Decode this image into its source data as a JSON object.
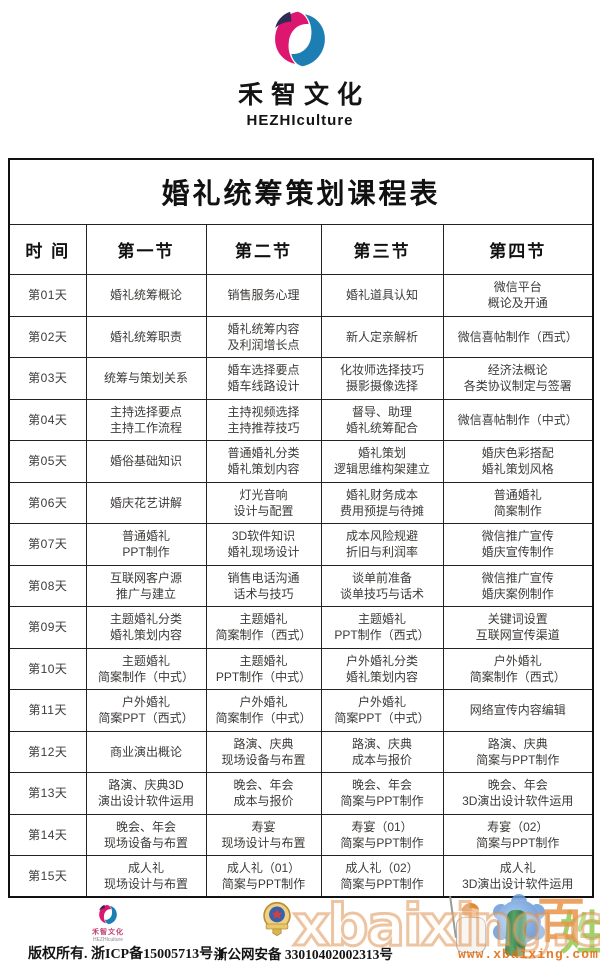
{
  "brand": {
    "name_cn": "禾智文化",
    "name_en": "HEZHIculture",
    "colors": {
      "pink": "#dd1670",
      "blue": "#1d7eb3",
      "dark": "#302c55"
    }
  },
  "table": {
    "title": "婚礼统筹策划课程表",
    "columns": [
      "时 间",
      "第一节",
      "第二节",
      "第三节",
      "第四节"
    ],
    "rows": [
      {
        "day": "第01天",
        "cells": [
          [
            "婚礼统筹概论"
          ],
          [
            "销售服务心理"
          ],
          [
            "婚礼道具认知"
          ],
          [
            "微信平台",
            "概论及开通"
          ]
        ]
      },
      {
        "day": "第02天",
        "cells": [
          [
            "婚礼统筹职责"
          ],
          [
            "婚礼统筹内容",
            "及利润增长点"
          ],
          [
            "新人定亲解析"
          ],
          [
            "微信喜帖制作（西式）"
          ]
        ]
      },
      {
        "day": "第03天",
        "cells": [
          [
            "统筹与策划关系"
          ],
          [
            "婚车选择要点",
            "婚车线路设计"
          ],
          [
            "化妆师选择技巧",
            "摄影摄像选择"
          ],
          [
            "经济法概论",
            "各类协议制定与签署"
          ]
        ]
      },
      {
        "day": "第04天",
        "cells": [
          [
            "主持选择要点",
            "主持工作流程"
          ],
          [
            "主持视频选择",
            "主持推荐技巧"
          ],
          [
            "督导、助理",
            "婚礼统筹配合"
          ],
          [
            "微信喜帖制作（中式）"
          ]
        ]
      },
      {
        "day": "第05天",
        "cells": [
          [
            "婚俗基础知识"
          ],
          [
            "普通婚礼分类",
            "婚礼策划内容"
          ],
          [
            "婚礼策划",
            "逻辑思维构架建立"
          ],
          [
            "婚庆色彩搭配",
            "婚礼策划风格"
          ]
        ]
      },
      {
        "day": "第06天",
        "cells": [
          [
            "婚庆花艺讲解"
          ],
          [
            "灯光音响",
            "设计与配置"
          ],
          [
            "婚礼财务成本",
            "费用预提与待摊"
          ],
          [
            "普通婚礼",
            "简案制作"
          ]
        ]
      },
      {
        "day": "第07天",
        "cells": [
          [
            "普通婚礼",
            "PPT制作"
          ],
          [
            "3D软件知识",
            "婚礼现场设计"
          ],
          [
            "成本风险规避",
            "折旧与利润率"
          ],
          [
            "微信推广宣传",
            "婚庆宣传制作"
          ]
        ]
      },
      {
        "day": "第08天",
        "cells": [
          [
            "互联网客户源",
            "推广与建立"
          ],
          [
            "销售电话沟通",
            "话术与技巧"
          ],
          [
            "谈单前准备",
            "谈单技巧与话术"
          ],
          [
            "微信推广宣传",
            "婚庆案例制作"
          ]
        ]
      },
      {
        "day": "第09天",
        "cells": [
          [
            "主题婚礼分类",
            "婚礼策划内容"
          ],
          [
            "主题婚礼",
            "简案制作（西式）"
          ],
          [
            "主题婚礼",
            "PPT制作（西式）"
          ],
          [
            "关键词设置",
            "互联网宣传渠道"
          ]
        ]
      },
      {
        "day": "第10天",
        "cells": [
          [
            "主题婚礼",
            "简案制作（中式）"
          ],
          [
            "主题婚礼",
            "PPT制作（中式）"
          ],
          [
            "户外婚礼分类",
            "婚礼策划内容"
          ],
          [
            "户外婚礼",
            "简案制作（西式）"
          ]
        ]
      },
      {
        "day": "第11天",
        "cells": [
          [
            "户外婚礼",
            "简案PPT（西式）"
          ],
          [
            "户外婚礼",
            "简案制作（中式）"
          ],
          [
            "户外婚礼",
            "简案PPT（中式）"
          ],
          [
            "网络宣传内容编辑"
          ]
        ]
      },
      {
        "day": "第12天",
        "cells": [
          [
            "商业演出概论"
          ],
          [
            "路演、庆典",
            "现场设备与布置"
          ],
          [
            "路演、庆典",
            "成本与报价"
          ],
          [
            "路演、庆典",
            "简案与PPT制作"
          ]
        ]
      },
      {
        "day": "第13天",
        "cells": [
          [
            "路演、庆典3D",
            "演出设计软件运用"
          ],
          [
            "晚会、年会",
            "成本与报价"
          ],
          [
            "晚会、年会",
            "简案与PPT制作"
          ],
          [
            "晚会、年会",
            "3D演出设计软件运用"
          ]
        ]
      },
      {
        "day": "第14天",
        "cells": [
          [
            "晚会、年会",
            "现场设备与布置"
          ],
          [
            "寿宴",
            "现场设计与布置"
          ],
          [
            "寿宴（01）",
            "简案与PPT制作"
          ],
          [
            "寿宴（02）",
            "简案与PPT制作"
          ]
        ]
      },
      {
        "day": "第15天",
        "cells": [
          [
            "成人礼",
            "现场设计与布置"
          ],
          [
            "成人礼（01）",
            "简案与PPT制作"
          ],
          [
            "成人礼（02）",
            "简案与PPT制作"
          ],
          [
            "成人礼",
            "3D演出设计软件运用"
          ]
        ]
      }
    ]
  },
  "footer": {
    "copyright": "版权所有. 浙ICP备15005713号-1",
    "security": "浙公网安备 33010402002313号"
  },
  "watermark": {
    "big": "xbaixing.com",
    "small": "www.xbaixing.com",
    "logo_char_1": "百",
    "logo_char_2": "姓",
    "orange": "#e8944a",
    "green": "#8dc63f"
  }
}
